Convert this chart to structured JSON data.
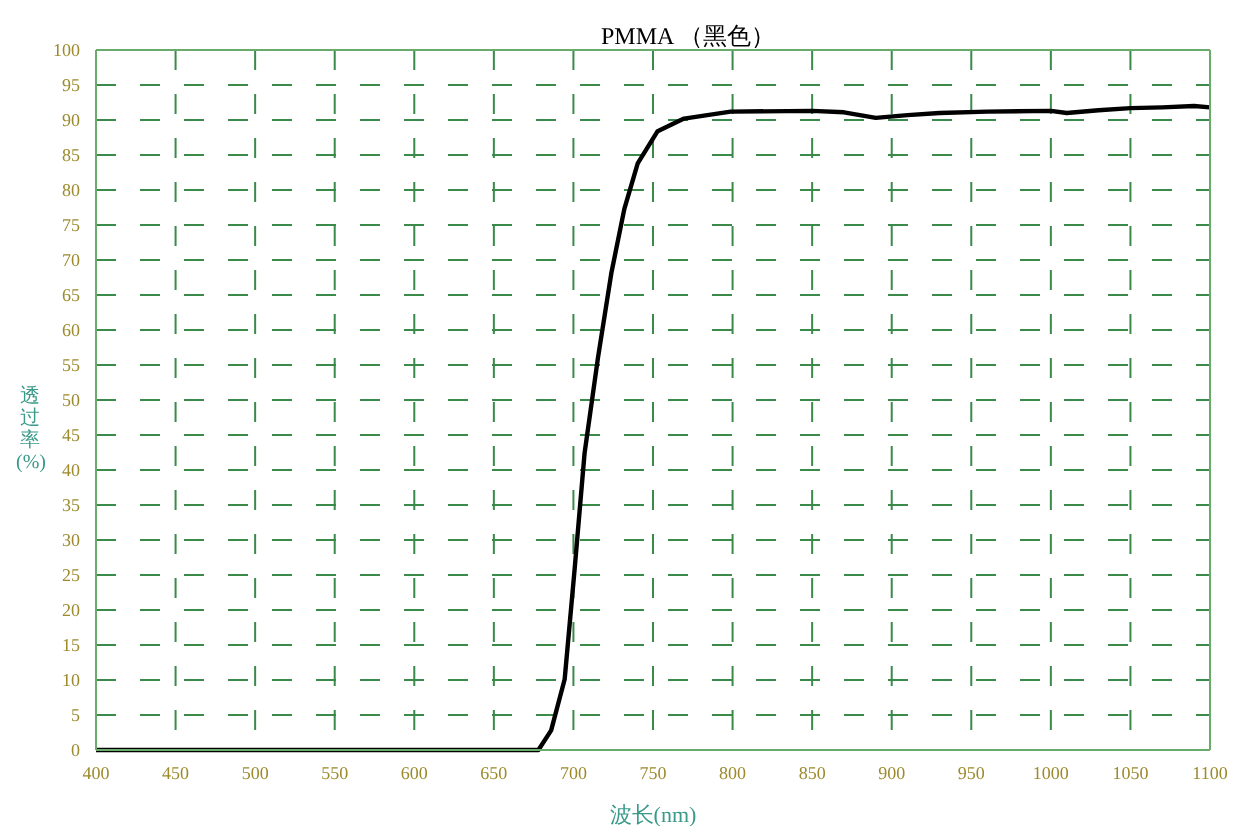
{
  "chart_data": {
    "type": "line",
    "title": "PMMA （黑色）",
    "xlabel": "波长(nm)",
    "ylabel": "透过率 (%)",
    "x": [
      400,
      500,
      600,
      650,
      670,
      678,
      686,
      694.5,
      700.7,
      707,
      715.4,
      723.8,
      732,
      740.4,
      752.9,
      769.5,
      798.8,
      850,
      870,
      890,
      910,
      930,
      960,
      1000,
      1010,
      1030,
      1050,
      1070,
      1090,
      1100
    ],
    "series": [
      {
        "color": "#000000",
        "values": [
          0,
          0,
          0,
          0,
          0,
          0,
          2.8,
          10.1,
          25.7,
          42.4,
          56,
          68.1,
          77.3,
          83.8,
          88.4,
          90.2,
          91.2,
          91.3,
          91.1,
          90.3,
          90.7,
          91,
          91.2,
          91.3,
          91,
          91.4,
          91.7,
          91.8,
          92,
          91.8
        ]
      }
    ],
    "xlim": [
      400,
      1100
    ],
    "xticks": [
      400,
      450,
      500,
      550,
      600,
      650,
      700,
      750,
      800,
      850,
      900,
      950,
      1000,
      1050,
      1100
    ],
    "ylim": [
      0,
      100
    ],
    "yticks": [
      0,
      5,
      10,
      15,
      20,
      25,
      30,
      35,
      40,
      45,
      50,
      55,
      60,
      65,
      70,
      75,
      80,
      85,
      90,
      95,
      100
    ],
    "grid": true,
    "legend": false,
    "marker": "none",
    "line_style": "solid"
  }
}
